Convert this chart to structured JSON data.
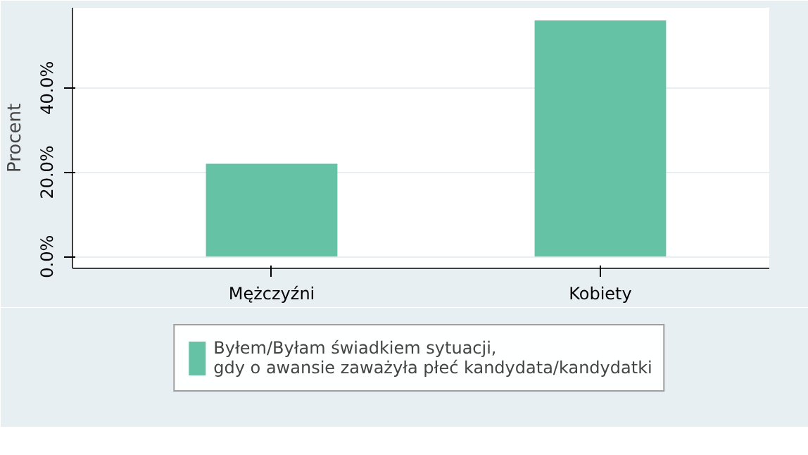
{
  "chart_data": {
    "type": "bar",
    "ylabel": "Procent",
    "categories": [
      "Mężczyźni",
      "Kobiety"
    ],
    "series": [
      {
        "name": "Byłem/Byłam świadkiem sytuacji,\ngdy o awansie zaważyła płeć kandydata/kandydatki",
        "color": "#66c2a5",
        "values": [
          22,
          56
        ]
      }
    ],
    "ylim": [
      -2.8,
      59
    ],
    "yticks": [
      {
        "value": 0,
        "label": "0.0%"
      },
      {
        "value": 20,
        "label": "20.0%"
      },
      {
        "value": 40,
        "label": "40.0%"
      }
    ],
    "grid": "y",
    "legend": "bottom"
  }
}
